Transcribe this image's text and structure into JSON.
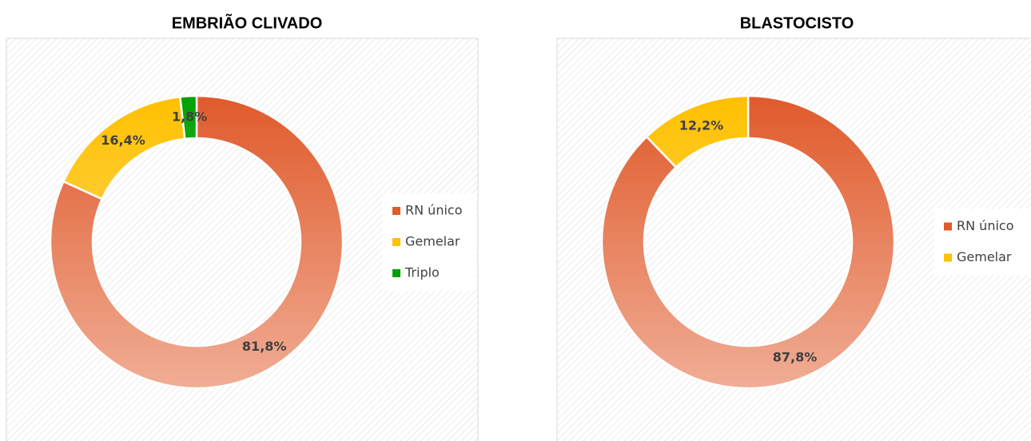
{
  "chart_data": [
    {
      "type": "donut",
      "title": "EMBRIÃO CLIVADO",
      "categories": [
        "RN único",
        "Gemelar",
        "Triplo"
      ],
      "values": [
        81.8,
        16.4,
        1.8
      ],
      "value_labels": [
        "81,8%",
        "16,4%",
        "1,8%"
      ],
      "colors": [
        "#e05a2b",
        "#ffc000",
        "#00a000"
      ]
    },
    {
      "type": "donut",
      "title": "BLASTOCISTO",
      "categories": [
        "RN único",
        "Gemelar"
      ],
      "values": [
        87.8,
        12.2
      ],
      "value_labels": [
        "87,8%",
        "12,2%"
      ],
      "colors": [
        "#e05a2b",
        "#ffc000"
      ]
    }
  ]
}
